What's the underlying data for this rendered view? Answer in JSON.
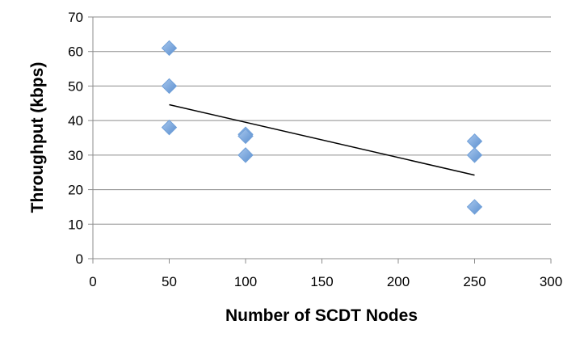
{
  "chart_data": {
    "type": "scatter",
    "xlabel": "Number of SCDT Nodes",
    "ylabel": "Throughput (kbps)",
    "xlim": [
      0,
      300
    ],
    "ylim": [
      0,
      70
    ],
    "x_ticks": [
      0,
      50,
      100,
      150,
      200,
      250,
      300
    ],
    "y_ticks": [
      0,
      10,
      20,
      30,
      40,
      50,
      60,
      70
    ],
    "grid": "horizontal",
    "legend": "none",
    "series": [
      {
        "points": [
          {
            "x": 50,
            "y": 61
          },
          {
            "x": 50,
            "y": 50
          },
          {
            "x": 50,
            "y": 38
          },
          {
            "x": 100,
            "y": 36
          },
          {
            "x": 100,
            "y": 35.5
          },
          {
            "x": 100,
            "y": 30
          },
          {
            "x": 250,
            "y": 34
          },
          {
            "x": 250,
            "y": 30
          },
          {
            "x": 250,
            "y": 15
          }
        ],
        "color": "#6f9fd8"
      }
    ],
    "trendline": {
      "type": "linear",
      "x": [
        50,
        250
      ],
      "y": [
        44.6,
        24.2
      ],
      "color": "#000000"
    }
  }
}
